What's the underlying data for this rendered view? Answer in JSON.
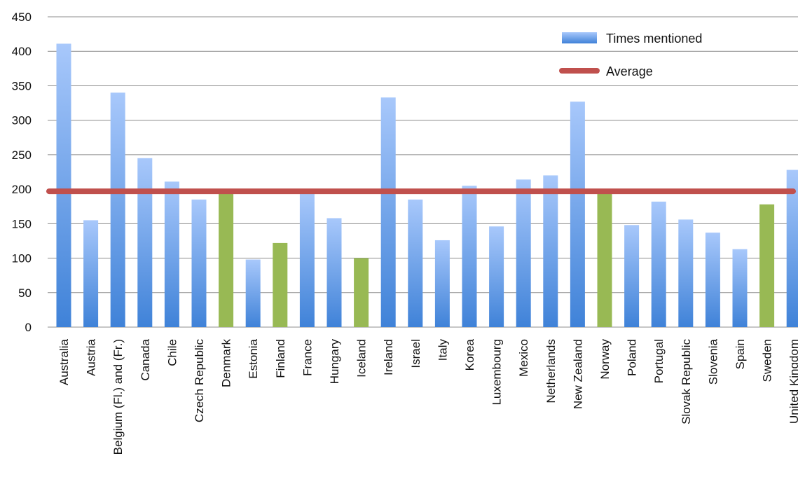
{
  "chart_data": {
    "type": "bar",
    "categories": [
      "Australia",
      "Austria",
      "Belgium (Fl.) and (Fr.)",
      "Canada",
      "Chile",
      "Czech Republic",
      "Denmark",
      "Estonia",
      "Finland",
      "France",
      "Hungary",
      "Iceland",
      "Ireland",
      "Israel",
      "Italy",
      "Korea",
      "Luxembourg",
      "Mexico",
      "Netherlands",
      "New Zealand",
      "Norway",
      "Poland",
      "Portugal",
      "Slovak Republic",
      "Slovenia",
      "Spain",
      "Sweden",
      "United Kingdom"
    ],
    "series": [
      {
        "name": "Times mentioned",
        "values": [
          411,
          155,
          340,
          245,
          211,
          185,
          196,
          98,
          122,
          194,
          158,
          100,
          333,
          185,
          126,
          205,
          146,
          214,
          220,
          327,
          196,
          148,
          182,
          156,
          137,
          113,
          178,
          228
        ]
      }
    ],
    "average": {
      "name": "Average",
      "value": 197
    },
    "highlighted_categories": [
      "Denmark",
      "Finland",
      "Iceland",
      "Norway",
      "Sweden"
    ],
    "ylim": [
      0,
      450
    ],
    "yticks": [
      0,
      50,
      100,
      150,
      200,
      250,
      300,
      350,
      400,
      450
    ],
    "grid": true,
    "legend_position": "top-right",
    "colors": {
      "bar_top": "#a8c8fb",
      "bar_bottom": "#3f82d8",
      "highlight_bar": "#98b954",
      "average_line": "#c0504d",
      "grid": "#8c8c8c"
    }
  }
}
